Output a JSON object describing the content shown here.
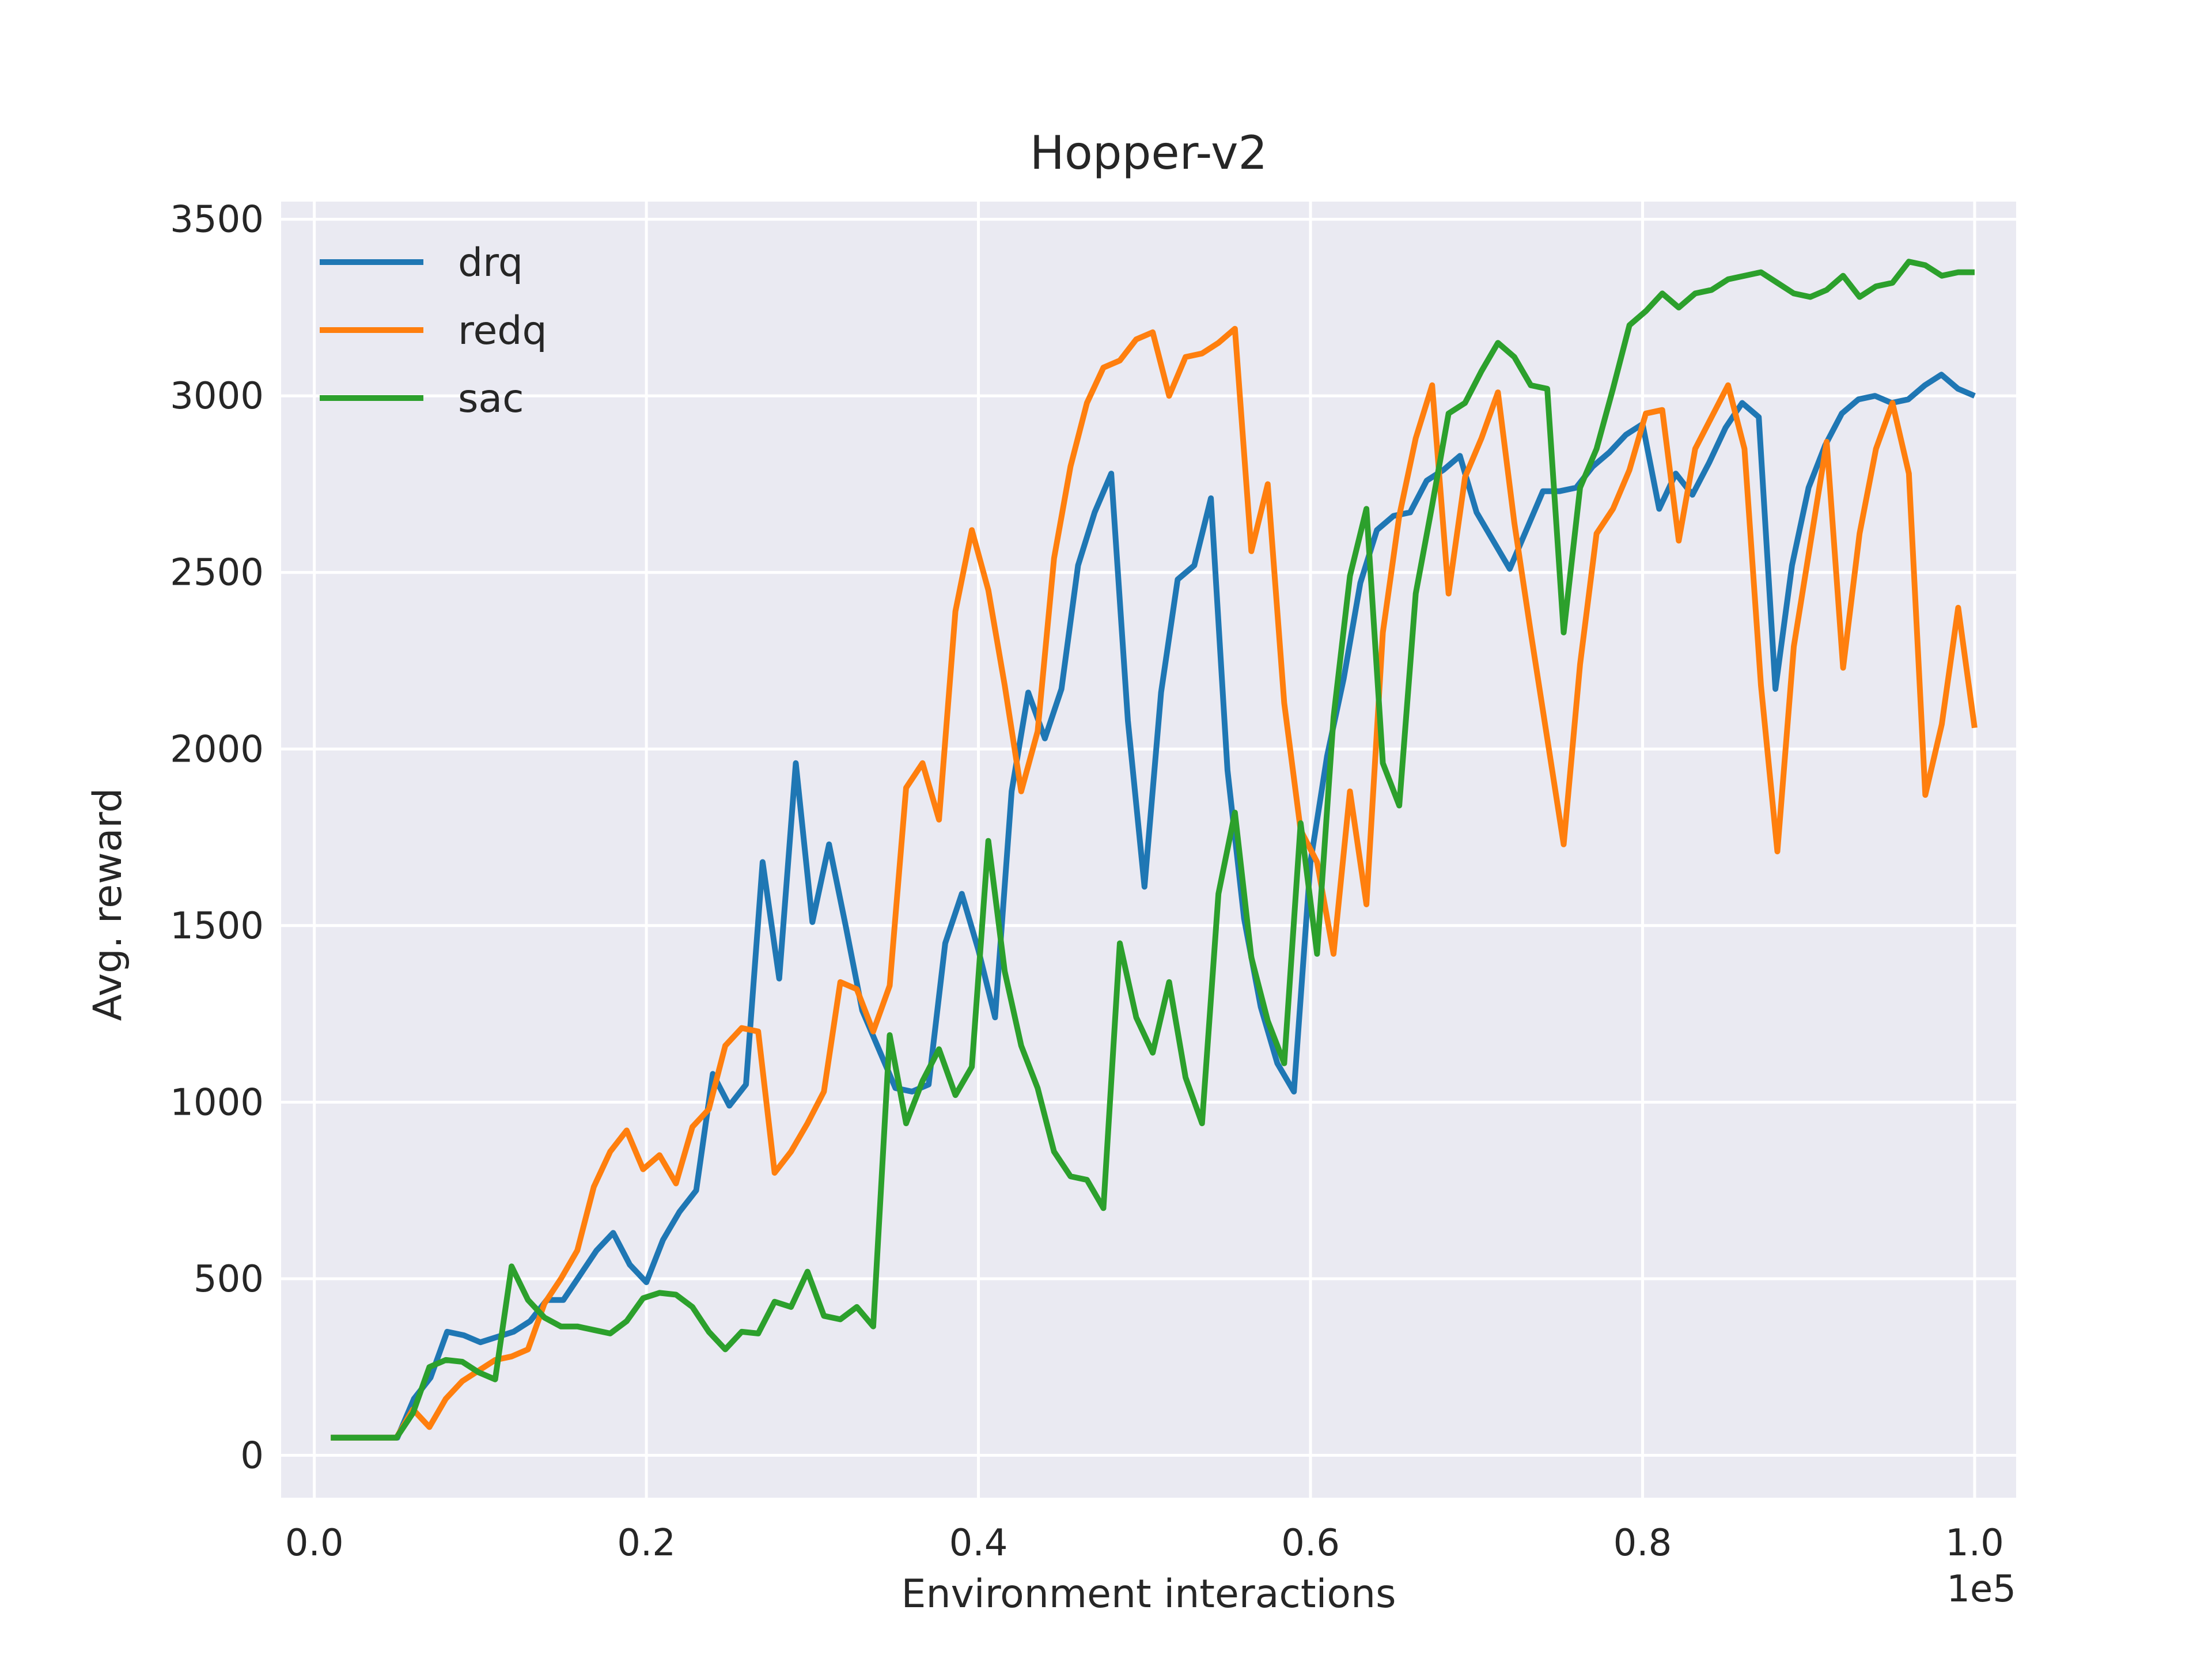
{
  "chart_data": {
    "type": "line",
    "title": "Hopper-v2",
    "xlabel": "Environment interactions",
    "ylabel": "Avg. reward",
    "x_scale_label": "1e5",
    "xlim": [
      -0.02,
      1.025
    ],
    "ylim": [
      -120,
      3550
    ],
    "x_ticks": [
      0.0,
      0.2,
      0.4,
      0.6,
      0.8,
      1.0
    ],
    "x_tick_labels": [
      "0.0",
      "0.2",
      "0.4",
      "0.6",
      "0.8",
      "1.0"
    ],
    "y_ticks": [
      0,
      500,
      1000,
      1500,
      2000,
      2500,
      3000,
      3500
    ],
    "y_tick_labels": [
      "0",
      "500",
      "1000",
      "1500",
      "2000",
      "2500",
      "3000",
      "3500"
    ],
    "grid": true,
    "legend_position": "top-left",
    "background_color": "#eaeaf2",
    "series": [
      {
        "name": "drq",
        "color": "#1f77b4",
        "values": [
          50,
          50,
          50,
          50,
          50,
          160,
          220,
          350,
          340,
          320,
          335,
          350,
          380,
          440,
          440,
          510,
          580,
          630,
          540,
          490,
          610,
          690,
          750,
          1080,
          990,
          1050,
          1680,
          1350,
          1960,
          1510,
          1730,
          1500,
          1260,
          1150,
          1040,
          1030,
          1050,
          1450,
          1590,
          1430,
          1240,
          1880,
          2160,
          2030,
          2170,
          2520,
          2670,
          2780,
          2080,
          1610,
          2160,
          2480,
          2520,
          2710,
          1940,
          1520,
          1270,
          1110,
          1030,
          1680,
          1980,
          2200,
          2470,
          2620,
          2660,
          2670,
          2760,
          2790,
          2830,
          2670,
          2590,
          2510,
          2620,
          2730,
          2730,
          2740,
          2800,
          2840,
          2890,
          2920,
          2680,
          2780,
          2720,
          2810,
          2910,
          2980,
          2940,
          2170,
          2520,
          2740,
          2860,
          2950,
          2990,
          3000,
          2980,
          2990,
          3030,
          3060,
          3020,
          3000
        ]
      },
      {
        "name": "redq",
        "color": "#ff7f0e",
        "values": [
          50,
          50,
          50,
          50,
          50,
          130,
          80,
          160,
          210,
          240,
          270,
          280,
          300,
          430,
          500,
          580,
          760,
          860,
          920,
          810,
          850,
          770,
          930,
          980,
          1160,
          1210,
          1200,
          800,
          860,
          940,
          1030,
          1340,
          1320,
          1200,
          1330,
          1890,
          1960,
          1800,
          2390,
          2620,
          2450,
          2180,
          1880,
          2050,
          2540,
          2800,
          2980,
          3080,
          3100,
          3160,
          3180,
          3000,
          3110,
          3120,
          3150,
          3190,
          2560,
          2750,
          2130,
          1770,
          1680,
          1420,
          1880,
          1560,
          2330,
          2660,
          2880,
          3030,
          2440,
          2770,
          2880,
          3010,
          2640,
          2330,
          2030,
          1730,
          2240,
          2610,
          2680,
          2790,
          2950,
          2960,
          2590,
          2850,
          2940,
          3030,
          2850,
          2180,
          1710,
          2290,
          2580,
          2870,
          2230,
          2610,
          2850,
          2980,
          2780,
          1870,
          2070,
          2400,
          2060
        ]
      },
      {
        "name": "sac",
        "color": "#2ca02c",
        "values": [
          50,
          50,
          50,
          50,
          50,
          120,
          250,
          270,
          265,
          235,
          215,
          535,
          440,
          390,
          365,
          365,
          355,
          345,
          380,
          445,
          460,
          455,
          420,
          350,
          300,
          350,
          345,
          435,
          420,
          520,
          395,
          385,
          420,
          365,
          1190,
          940,
          1060,
          1150,
          1020,
          1100,
          1740,
          1370,
          1160,
          1040,
          860,
          790,
          780,
          700,
          1450,
          1240,
          1140,
          1340,
          1070,
          940,
          1590,
          1820,
          1410,
          1230,
          1110,
          1790,
          1420,
          2090,
          2490,
          2680,
          1960,
          1840,
          2440,
          2690,
          2950,
          2980,
          3070,
          3150,
          3110,
          3030,
          3020,
          2330,
          2740,
          2850,
          3020,
          3200,
          3240,
          3290,
          3250,
          3290,
          3300,
          3330,
          3340,
          3350,
          3320,
          3290,
          3280,
          3300,
          3340,
          3280,
          3310,
          3320,
          3380,
          3370,
          3340,
          3350,
          3350
        ]
      }
    ]
  }
}
